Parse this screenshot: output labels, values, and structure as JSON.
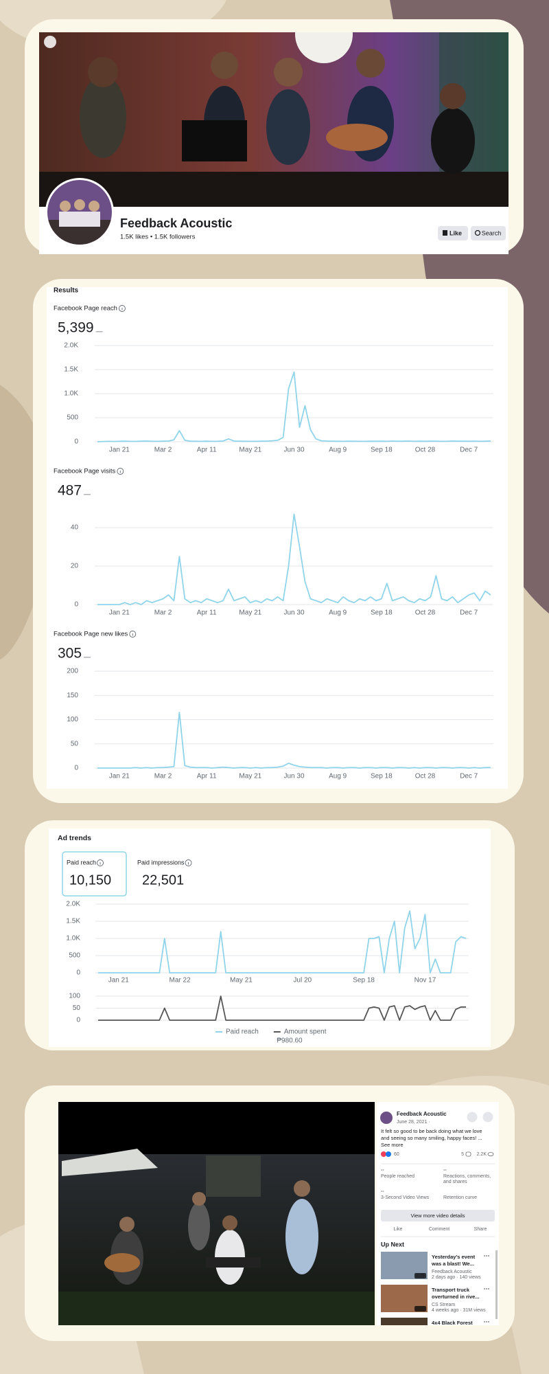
{
  "page_header": {
    "name": "Feedback Acoustic",
    "stats": "1.5K likes • 1.5K followers",
    "buttons": [
      "Like",
      "Search"
    ]
  },
  "results": {
    "title": "Results",
    "charts": [
      {
        "type": "line",
        "title": "Facebook Page reach",
        "total": "5,399",
        "color": "#8fd4ea",
        "categories": [
          null,
          null,
          null,
          null,
          "Jan 21",
          null,
          null,
          null,
          null,
          null,
          null,
          null,
          "Mar 2",
          null,
          null,
          null,
          null,
          null,
          null,
          null,
          "Apr 11",
          null,
          null,
          null,
          null,
          null,
          null,
          null,
          "May 21",
          null,
          null,
          null,
          null,
          null,
          null,
          null,
          "Jun 30",
          null,
          null,
          null,
          null,
          null,
          null,
          null,
          "Aug 9",
          null,
          null,
          null,
          null,
          null,
          null,
          null,
          "Sep 18",
          null,
          null,
          null,
          null,
          null,
          null,
          null,
          "Oct 28",
          null,
          null,
          null,
          null,
          null,
          null,
          null,
          "Dec 7",
          null,
          null,
          null,
          null
        ],
        "values": [
          0,
          5,
          8,
          6,
          10,
          12,
          9,
          7,
          11,
          14,
          10,
          9,
          12,
          15,
          40,
          230,
          30,
          12,
          10,
          9,
          11,
          8,
          10,
          14,
          60,
          15,
          12,
          10,
          9,
          8,
          11,
          13,
          20,
          30,
          90,
          1100,
          1450,
          300,
          750,
          250,
          60,
          20,
          15,
          12,
          10,
          9,
          11,
          10,
          8,
          9,
          12,
          10,
          11,
          9,
          14,
          10,
          12,
          15,
          9,
          11,
          10,
          13,
          12,
          9,
          10,
          14,
          11,
          12,
          10,
          13,
          9,
          12,
          15
        ],
        "ylim": [
          0,
          2000
        ],
        "yticks": [
          0,
          500,
          {
            "value": 1000,
            "label": "1.0K"
          },
          {
            "value": 1500,
            "label": "1.5K"
          },
          {
            "value": 2000,
            "label": "2.0K"
          }
        ],
        "grid": true
      },
      {
        "type": "line",
        "title": "Facebook Page visits",
        "total": "487",
        "color": "#8fd4ea",
        "categories": [
          null,
          null,
          null,
          null,
          "Jan 21",
          null,
          null,
          null,
          null,
          null,
          null,
          null,
          "Mar 2",
          null,
          null,
          null,
          null,
          null,
          null,
          null,
          "Apr 11",
          null,
          null,
          null,
          null,
          null,
          null,
          null,
          "May 21",
          null,
          null,
          null,
          null,
          null,
          null,
          null,
          "Jun 30",
          null,
          null,
          null,
          null,
          null,
          null,
          null,
          "Aug 9",
          null,
          null,
          null,
          null,
          null,
          null,
          null,
          "Sep 18",
          null,
          null,
          null,
          null,
          null,
          null,
          null,
          "Oct 28",
          null,
          null,
          null,
          null,
          null,
          null,
          null,
          "Dec 7",
          null,
          null,
          null,
          null
        ],
        "values": [
          0,
          0,
          0,
          0,
          0,
          1,
          0,
          1,
          0,
          2,
          1,
          2,
          3,
          5,
          2,
          25,
          3,
          1,
          2,
          1,
          3,
          2,
          1,
          2,
          8,
          2,
          3,
          4,
          1,
          2,
          1,
          3,
          2,
          4,
          2,
          20,
          47,
          30,
          12,
          3,
          2,
          1,
          3,
          2,
          1,
          4,
          2,
          1,
          3,
          2,
          4,
          2,
          3,
          11,
          2,
          3,
          4,
          2,
          1,
          3,
          2,
          4,
          15,
          3,
          2,
          4,
          1,
          3,
          5,
          6,
          2,
          7,
          5
        ],
        "ylim": [
          0,
          50
        ],
        "yticks": [
          0,
          20,
          40
        ],
        "grid": true
      },
      {
        "type": "line",
        "title": "Facebook Page new likes",
        "total": "305",
        "color": "#8fd4ea",
        "categories": [
          null,
          null,
          null,
          null,
          "Jan 21",
          null,
          null,
          null,
          null,
          null,
          null,
          null,
          "Mar 2",
          null,
          null,
          null,
          null,
          null,
          null,
          null,
          "Apr 11",
          null,
          null,
          null,
          null,
          null,
          null,
          null,
          "May 21",
          null,
          null,
          null,
          null,
          null,
          null,
          null,
          "Jun 30",
          null,
          null,
          null,
          null,
          null,
          null,
          null,
          "Aug 9",
          null,
          null,
          null,
          null,
          null,
          null,
          null,
          "Sep 18",
          null,
          null,
          null,
          null,
          null,
          null,
          null,
          "Oct 28",
          null,
          null,
          null,
          null,
          null,
          null,
          null,
          "Dec 7",
          null,
          null,
          null,
          null
        ],
        "values": [
          0,
          0,
          0,
          0,
          0,
          0,
          0,
          1,
          0,
          1,
          0,
          1,
          1,
          2,
          3,
          115,
          5,
          2,
          1,
          1,
          1,
          0,
          1,
          2,
          1,
          0,
          1,
          1,
          0,
          1,
          0,
          1,
          1,
          2,
          4,
          10,
          6,
          3,
          2,
          1,
          1,
          1,
          0,
          1,
          1,
          0,
          1,
          1,
          0,
          1,
          1,
          0,
          1,
          1,
          0,
          1,
          1,
          0,
          1,
          0,
          1,
          1,
          0,
          1,
          1,
          0,
          1,
          1,
          0,
          1,
          0,
          1,
          1
        ],
        "ylim": [
          0,
          200
        ],
        "yticks": [
          0,
          50,
          100,
          150,
          200
        ],
        "grid": true
      }
    ]
  },
  "ad_trends": {
    "title": "Ad trends",
    "metrics": [
      {
        "label": "Paid reach",
        "value": "10,150"
      },
      {
        "label": "Paid impressions",
        "value": "22,501"
      }
    ],
    "chart": {
      "type": "line",
      "categories": [
        null,
        null,
        null,
        null,
        "Jan 21",
        null,
        null,
        null,
        null,
        null,
        null,
        null,
        null,
        null,
        null,
        null,
        "Mar 22",
        null,
        null,
        null,
        null,
        null,
        null,
        null,
        null,
        null,
        null,
        null,
        "May 21",
        null,
        null,
        null,
        null,
        null,
        null,
        null,
        null,
        null,
        null,
        null,
        "Jul 20",
        null,
        null,
        null,
        null,
        null,
        null,
        null,
        null,
        null,
        null,
        null,
        "Sep 18",
        null,
        null,
        null,
        null,
        null,
        null,
        null,
        null,
        null,
        null,
        null,
        "Nov 17",
        null,
        null,
        null,
        null,
        null,
        null,
        null,
        null
      ],
      "series": [
        {
          "name": "Paid reach",
          "color": "#8fd4ea",
          "values": [
            0,
            0,
            0,
            0,
            0,
            0,
            0,
            0,
            0,
            0,
            0,
            0,
            0,
            1000,
            0,
            0,
            0,
            0,
            0,
            0,
            0,
            0,
            0,
            0,
            1200,
            0,
            0,
            0,
            0,
            0,
            0,
            0,
            0,
            0,
            0,
            0,
            0,
            0,
            0,
            0,
            0,
            0,
            0,
            0,
            0,
            0,
            0,
            0,
            0,
            0,
            0,
            0,
            0,
            1000,
            1000,
            1050,
            0,
            1000,
            1500,
            0,
            1300,
            1800,
            700,
            1000,
            1700,
            0,
            400,
            0,
            0,
            0,
            900,
            1050,
            1000
          ]
        },
        {
          "name": "Amount spent",
          "color": "#555555",
          "axis": "y2",
          "values": [
            0,
            0,
            0,
            0,
            0,
            0,
            0,
            0,
            0,
            0,
            0,
            0,
            0,
            50,
            0,
            0,
            0,
            0,
            0,
            0,
            0,
            0,
            0,
            0,
            100,
            0,
            0,
            0,
            0,
            0,
            0,
            0,
            0,
            0,
            0,
            0,
            0,
            0,
            0,
            0,
            0,
            0,
            0,
            0,
            0,
            0,
            0,
            0,
            0,
            0,
            0,
            0,
            0,
            50,
            55,
            50,
            0,
            55,
            60,
            0,
            55,
            60,
            45,
            55,
            60,
            0,
            40,
            0,
            0,
            0,
            45,
            55,
            55
          ]
        }
      ],
      "ylim": [
        0,
        2000
      ],
      "yticks": [
        0,
        500,
        {
          "value": 1000,
          "label": "1.0K"
        },
        {
          "value": 1500,
          "label": "1.5K"
        },
        {
          "value": 2000,
          "label": "2.0K"
        }
      ],
      "y2lim": [
        0,
        100
      ],
      "y2ticks": [
        0,
        50,
        100
      ],
      "grid": true,
      "legend": "bottom",
      "legend_note": "₱980.60"
    }
  },
  "video_post": {
    "page_name": "Feedback Acoustic",
    "date": "June 28, 2021 ·",
    "text_lines": [
      "It felt so good to be back doing what we love",
      "and seeing so many smiling, happy faces! ..."
    ],
    "see_more": "See more",
    "reactions": "60",
    "comments": "5",
    "views": "2.2K",
    "stats": [
      {
        "value": "--",
        "label_lines": [
          "People reached"
        ]
      },
      {
        "value": "--",
        "label_lines": [
          "Reactions, comments,",
          "and shares"
        ]
      },
      {
        "value": "--",
        "label_lines": [
          "3-Second Video Views"
        ]
      },
      {
        "value": "",
        "label_lines": [
          "Retention curve"
        ]
      }
    ],
    "details_button": "View more video details",
    "actions": [
      "Like",
      "Comment",
      "Share"
    ],
    "up_next_title": "Up Next",
    "up_next": [
      {
        "title_lines": [
          "Yesterday's event",
          "was a blast! We..."
        ],
        "channel": "Feedback Acoustic",
        "meta": "2 days ago · 140 views",
        "duration": "0:29"
      },
      {
        "title_lines": [
          "Transport truck",
          "overturned in rive..."
        ],
        "channel": "CS Stream",
        "meta": "4 weeks ago · 31M views",
        "duration": "3:05"
      },
      {
        "title_lines": [
          "4x4 Black Forest"
        ]
      }
    ]
  }
}
